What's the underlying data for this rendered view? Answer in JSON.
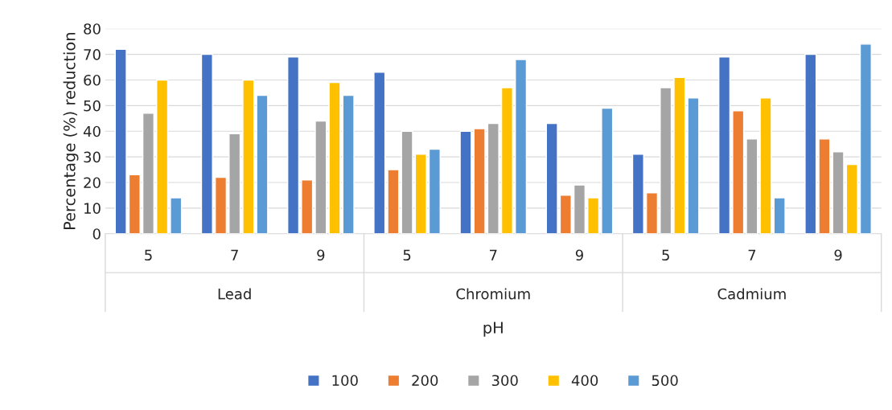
{
  "chart_data": {
    "type": "bar",
    "xlabel": "pH",
    "ylabel": "Percentage (%) reduction",
    "categories": [
      "5",
      "7",
      "9",
      "5",
      "7",
      "9",
      "5",
      "7",
      "9"
    ],
    "annotations": [
      "Lead",
      "Chromium",
      "Cadmium"
    ],
    "series": [
      {
        "name": "100",
        "color": "#4472c4",
        "values": [
          72,
          70,
          69,
          63,
          40,
          43,
          31,
          69,
          70
        ]
      },
      {
        "name": "200",
        "color": "#ed7d31",
        "values": [
          23,
          22,
          21,
          25,
          41,
          15,
          16,
          48,
          37
        ]
      },
      {
        "name": "300",
        "color": "#a5a5a5",
        "values": [
          47,
          39,
          44,
          40,
          43,
          19,
          57,
          37,
          32
        ]
      },
      {
        "name": "400",
        "color": "#ffc000",
        "values": [
          60,
          60,
          59,
          31,
          57,
          14,
          61,
          53,
          27
        ]
      },
      {
        "name": "500",
        "color": "#5b9bd5",
        "values": [
          14,
          54,
          54,
          33,
          68,
          49,
          53,
          14,
          74
        ]
      }
    ],
    "ylim": [
      0,
      80
    ],
    "yticks": [
      0,
      10,
      20,
      30,
      40,
      50,
      60,
      70,
      80
    ],
    "grid": "y",
    "legend": "bottom"
  }
}
